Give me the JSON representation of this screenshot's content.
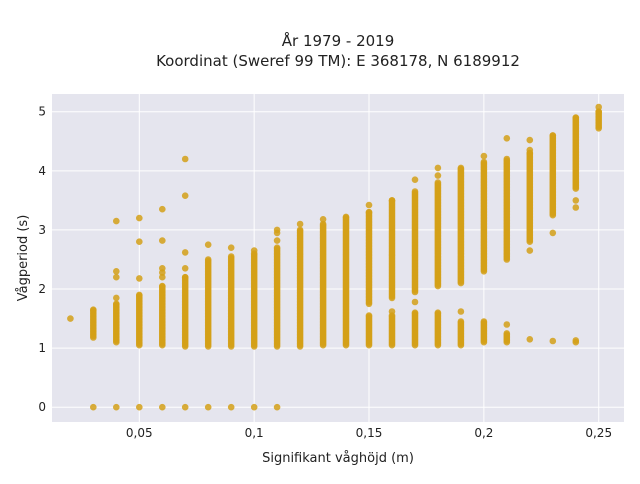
{
  "chart_data": {
    "type": "scatter",
    "title": "År 1979 - 2019",
    "subtitle": "Koordinat (Sweref 99 TM): E 368178, N 6189912",
    "xlabel": "Signifikant våghöjd (m)",
    "ylabel": "Vågperiod (s)",
    "xlim": [
      0.012,
      0.261
    ],
    "ylim": [
      -0.25,
      5.3
    ],
    "x_ticks": [
      0.05,
      0.1,
      0.15,
      0.2,
      0.25
    ],
    "x_tick_labels": [
      "0,05",
      "0,1",
      "0,15",
      "0,2",
      "0,25"
    ],
    "y_ticks": [
      0,
      1,
      2,
      3,
      4,
      5
    ],
    "y_tick_labels": [
      "0",
      "1",
      "2",
      "3",
      "4",
      "5"
    ],
    "grid": true,
    "marker_color": "#D4A017",
    "plot_background": "#E5E5EE",
    "columns": [
      {
        "x": 0.02,
        "ranges": [],
        "points": [
          1.5
        ]
      },
      {
        "x": 0.03,
        "ranges": [
          [
            1.18,
            1.65
          ]
        ],
        "points": [
          0
        ]
      },
      {
        "x": 0.04,
        "ranges": [
          [
            1.1,
            1.75
          ]
        ],
        "points": [
          0,
          1.85,
          2.2,
          2.3,
          3.15
        ]
      },
      {
        "x": 0.05,
        "ranges": [
          [
            1.05,
            1.9
          ]
        ],
        "points": [
          0,
          2.18,
          2.8,
          3.2
        ]
      },
      {
        "x": 0.06,
        "ranges": [
          [
            1.05,
            2.05
          ]
        ],
        "points": [
          0,
          2.2,
          2.28,
          2.35,
          2.82,
          3.35
        ]
      },
      {
        "x": 0.07,
        "ranges": [
          [
            1.03,
            2.2
          ]
        ],
        "points": [
          0,
          2.35,
          2.62,
          3.58,
          4.2
        ]
      },
      {
        "x": 0.08,
        "ranges": [
          [
            1.03,
            2.5
          ]
        ],
        "points": [
          0,
          2.75
        ]
      },
      {
        "x": 0.09,
        "ranges": [
          [
            1.03,
            2.55
          ]
        ],
        "points": [
          0,
          2.7
        ]
      },
      {
        "x": 0.1,
        "ranges": [
          [
            1.03,
            2.6
          ]
        ],
        "points": [
          0,
          2.65
        ]
      },
      {
        "x": 0.11,
        "ranges": [
          [
            1.03,
            2.7
          ]
        ],
        "points": [
          0,
          2.82,
          2.95,
          3.0
        ]
      },
      {
        "x": 0.12,
        "ranges": [
          [
            1.03,
            3.0
          ]
        ],
        "points": [
          3.1
        ]
      },
      {
        "x": 0.13,
        "ranges": [
          [
            1.05,
            3.1
          ]
        ],
        "points": [
          3.18
        ]
      },
      {
        "x": 0.14,
        "ranges": [
          [
            1.05,
            3.22
          ]
        ],
        "points": []
      },
      {
        "x": 0.15,
        "ranges": [
          [
            1.05,
            1.55
          ],
          [
            1.75,
            3.3
          ]
        ],
        "points": [
          3.42
        ]
      },
      {
        "x": 0.16,
        "ranges": [
          [
            1.05,
            1.55
          ],
          [
            1.85,
            3.5
          ]
        ],
        "points": [
          1.62
        ]
      },
      {
        "x": 0.17,
        "ranges": [
          [
            1.05,
            1.6
          ],
          [
            1.95,
            3.65
          ]
        ],
        "points": [
          1.78,
          3.85
        ]
      },
      {
        "x": 0.18,
        "ranges": [
          [
            1.05,
            1.6
          ],
          [
            2.05,
            3.8
          ]
        ],
        "points": [
          3.92,
          4.05
        ]
      },
      {
        "x": 0.19,
        "ranges": [
          [
            1.05,
            1.45
          ],
          [
            2.1,
            4.05
          ]
        ],
        "points": [
          1.62
        ]
      },
      {
        "x": 0.2,
        "ranges": [
          [
            1.1,
            1.45
          ],
          [
            2.3,
            4.15
          ]
        ],
        "points": [
          4.25
        ]
      },
      {
        "x": 0.21,
        "ranges": [
          [
            1.1,
            1.25
          ],
          [
            2.5,
            4.2
          ]
        ],
        "points": [
          1.4,
          4.55
        ]
      },
      {
        "x": 0.22,
        "ranges": [
          [
            2.8,
            4.3
          ]
        ],
        "points": [
          1.15,
          2.65,
          4.35,
          4.52
        ]
      },
      {
        "x": 0.23,
        "ranges": [
          [
            3.25,
            4.6
          ]
        ],
        "points": [
          1.12,
          2.95
        ]
      },
      {
        "x": 0.24,
        "ranges": [
          [
            3.7,
            4.9
          ]
        ],
        "points": [
          1.1,
          1.13,
          3.38,
          3.5
        ]
      },
      {
        "x": 0.25,
        "ranges": [
          [
            4.72,
            5.0
          ]
        ],
        "points": [
          5.08
        ]
      }
    ]
  }
}
